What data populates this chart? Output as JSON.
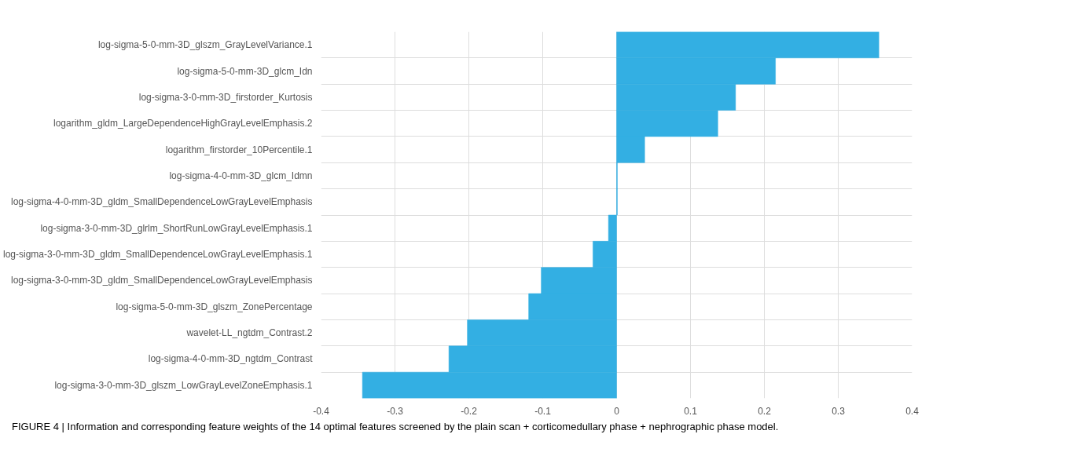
{
  "chart_data": {
    "type": "bar",
    "orientation": "horizontal",
    "categories": [
      "log-sigma-5-0-mm-3D_glszm_GrayLevelVariance.1",
      "log-sigma-5-0-mm-3D_glcm_Idn",
      "log-sigma-3-0-mm-3D_firstorder_Kurtosis",
      "logarithm_gldm_LargeDependenceHighGrayLevelEmphasis.2",
      "logarithm_firstorder_10Percentile.1",
      "log-sigma-4-0-mm-3D_glcm_Idmn",
      "log-sigma-4-0-mm-3D_gldm_SmallDependenceLowGrayLevelEmphasis",
      "log-sigma-3-0-mm-3D_glrlm_ShortRunLowGrayLevelEmphasis.1",
      "log-sigma-3-0-mm-3D_gldm_SmallDependenceLowGrayLevelEmphasis.1",
      "log-sigma-3-0-mm-3D_gldm_SmallDependenceLowGrayLevelEmphasis",
      "log-sigma-5-0-mm-3D_glszm_ZonePercentage",
      "wavelet-LL_ngtdm_Contrast.2",
      "log-sigma-4-0-mm-3D_ngtdm_Contrast",
      "log-sigma-3-0-mm-3D_glszm_LowGrayLevelZoneEmphasis.1"
    ],
    "values": [
      0.355,
      0.215,
      0.161,
      0.137,
      0.038,
      0.001,
      0.001,
      -0.011,
      -0.032,
      -0.102,
      -0.119,
      -0.202,
      -0.227,
      -0.344
    ],
    "color": "#33afe3",
    "xlim": [
      -0.4,
      0.4
    ],
    "xticks": [
      -0.4,
      -0.3,
      -0.2,
      -0.1,
      0,
      0.1,
      0.2,
      0.3,
      0.4
    ],
    "grid": true,
    "annotations": [
      "FIGURE 4 | Information and corresponding feature weights of the 14 optimal features screened by the plain scan + corticomedullary phase + nephrographic phase model."
    ]
  }
}
